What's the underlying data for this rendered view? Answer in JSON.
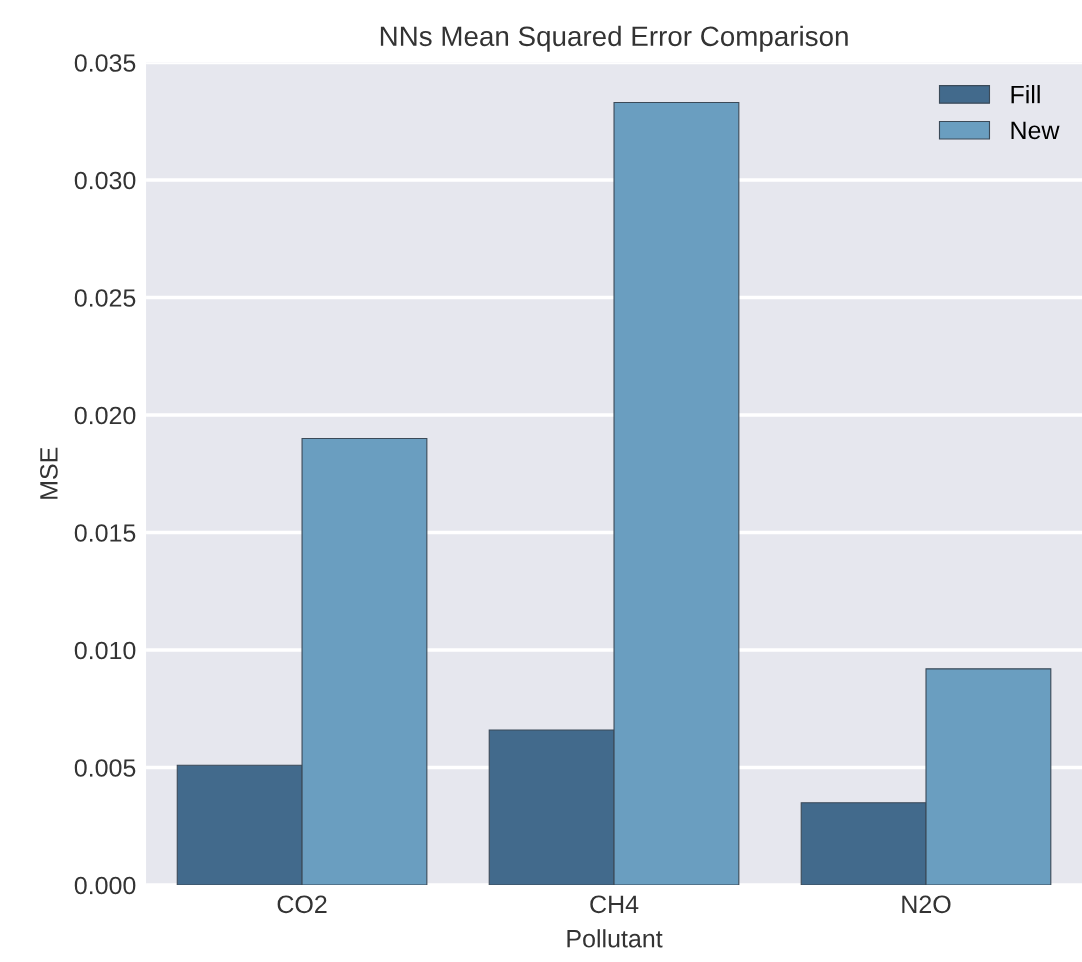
{
  "chart_data": {
    "type": "bar",
    "title": "NNs Mean Squared Error Comparison",
    "xlabel": "Pollutant",
    "ylabel": "MSE",
    "categories": [
      "CO2",
      "CH4",
      "N2O"
    ],
    "series": [
      {
        "name": "Fill",
        "color": "#426a8c",
        "values": [
          0.0051,
          0.0066,
          0.0035
        ]
      },
      {
        "name": "New",
        "color": "#6a9ec0",
        "values": [
          0.019,
          0.0333,
          0.0092
        ]
      }
    ],
    "ylim": [
      0,
      0.035
    ],
    "yticks": [
      {
        "value": 0,
        "label": "0.000"
      },
      {
        "value": 0.005,
        "label": "0.005"
      },
      {
        "value": 0.01,
        "label": "0.010"
      },
      {
        "value": 0.015,
        "label": "0.015"
      },
      {
        "value": 0.02,
        "label": "0.020"
      },
      {
        "value": 0.025,
        "label": "0.025"
      },
      {
        "value": 0.03,
        "label": "0.030"
      },
      {
        "value": 0.035,
        "label": "0.035"
      }
    ],
    "grid": "y",
    "legend": "top right"
  }
}
